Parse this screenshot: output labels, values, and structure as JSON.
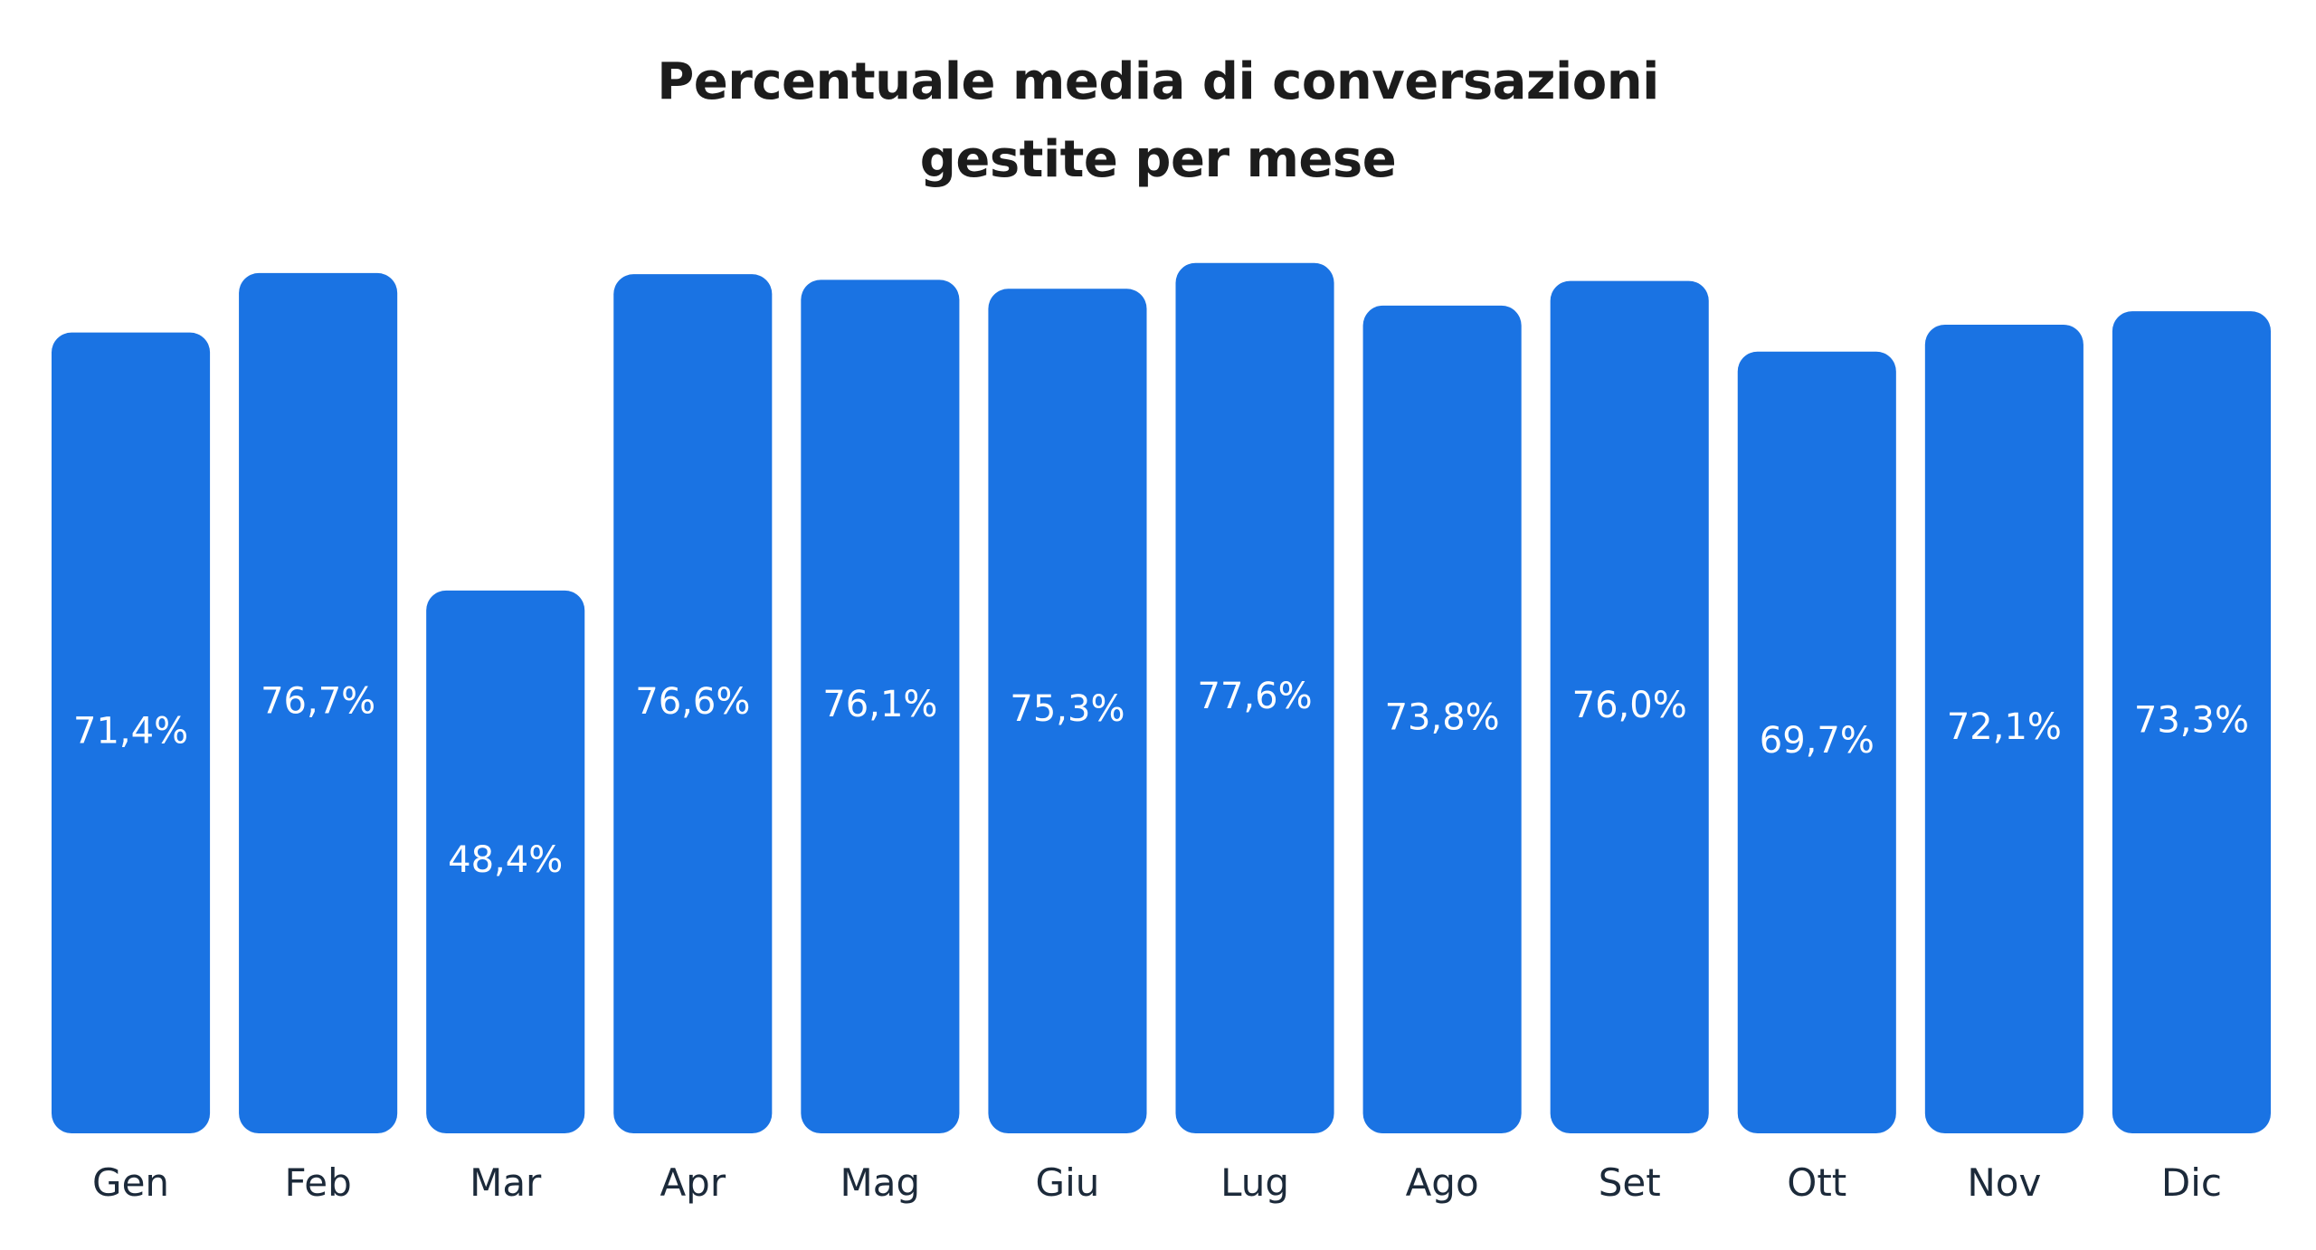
{
  "chart_data": {
    "type": "bar",
    "title_lines": [
      "Percentuale media di conversazioni",
      "gestite per mese"
    ],
    "categories": [
      "Gen",
      "Feb",
      "Mar",
      "Apr",
      "Mag",
      "Giu",
      "Lug",
      "Ago",
      "Set",
      "Ott",
      "Nov",
      "Dic"
    ],
    "values": [
      71.4,
      76.7,
      48.4,
      76.6,
      76.1,
      75.3,
      77.6,
      73.8,
      76.0,
      69.7,
      72.1,
      73.3
    ],
    "data_labels": [
      "71,4%",
      "76,7%",
      "48,4%",
      "76,6%",
      "76,1%",
      "75,3%",
      "77,6%",
      "73,8%",
      "76,0%",
      "69,7%",
      "72,1%",
      "73,3%"
    ],
    "grid": false,
    "legend": "none",
    "colors": {
      "bar": "#1a73e3",
      "title": "#1c1c1c",
      "tick_label": "#1c2a3a",
      "data_label": "#ffffff"
    }
  }
}
